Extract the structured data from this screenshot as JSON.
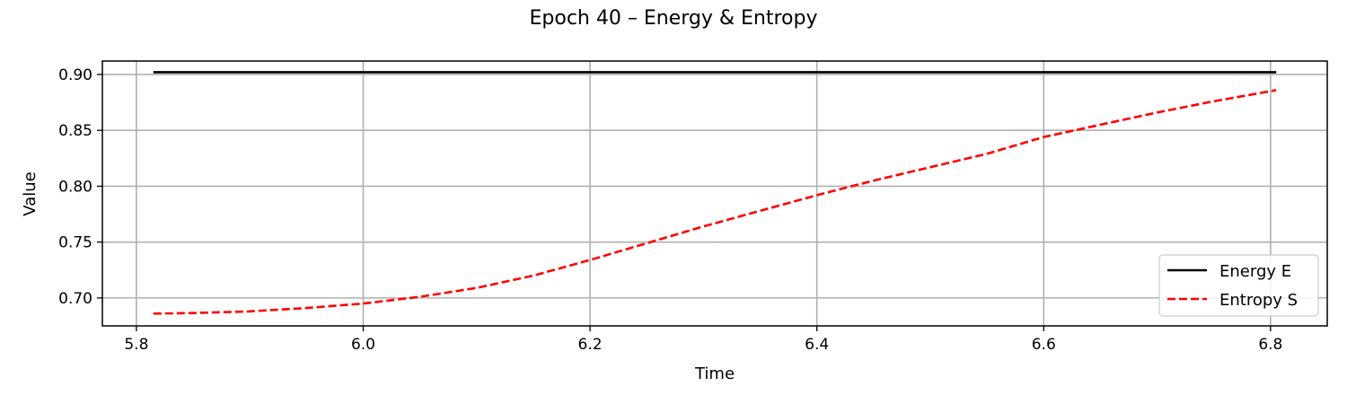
{
  "chart_data": {
    "type": "line",
    "title": "Epoch 40 – Energy & Entropy",
    "xlabel": "Time",
    "ylabel": "Value",
    "xlim": [
      5.77,
      6.85
    ],
    "ylim": [
      0.675,
      0.912
    ],
    "xticks": [
      5.8,
      6.0,
      6.2,
      6.4,
      6.6,
      6.8
    ],
    "xtick_labels": [
      "5.8",
      "6.0",
      "6.2",
      "6.4",
      "6.6",
      "6.8"
    ],
    "yticks": [
      0.7,
      0.75,
      0.8,
      0.85,
      0.9
    ],
    "ytick_labels": [
      "0.70",
      "0.75",
      "0.80",
      "0.85",
      "0.90"
    ],
    "grid": true,
    "legend_position": "lower-right",
    "series": [
      {
        "name": "Energy E",
        "color": "#000000",
        "line_style": "solid",
        "x": [
          5.815,
          6.0,
          6.2,
          6.4,
          6.6,
          6.805
        ],
        "y": [
          0.902,
          0.902,
          0.902,
          0.902,
          0.902,
          0.902
        ]
      },
      {
        "name": "Entropy S",
        "color": "#ff0000",
        "line_style": "dashed",
        "x": [
          5.815,
          5.85,
          5.9,
          5.95,
          6.0,
          6.05,
          6.1,
          6.15,
          6.2,
          6.25,
          6.3,
          6.35,
          6.4,
          6.45,
          6.5,
          6.55,
          6.6,
          6.65,
          6.7,
          6.75,
          6.805
        ],
        "y": [
          0.686,
          0.6865,
          0.688,
          0.691,
          0.695,
          0.701,
          0.709,
          0.72,
          0.734,
          0.749,
          0.764,
          0.778,
          0.792,
          0.805,
          0.817,
          0.829,
          0.844,
          0.855,
          0.866,
          0.876,
          0.886
        ]
      }
    ]
  }
}
